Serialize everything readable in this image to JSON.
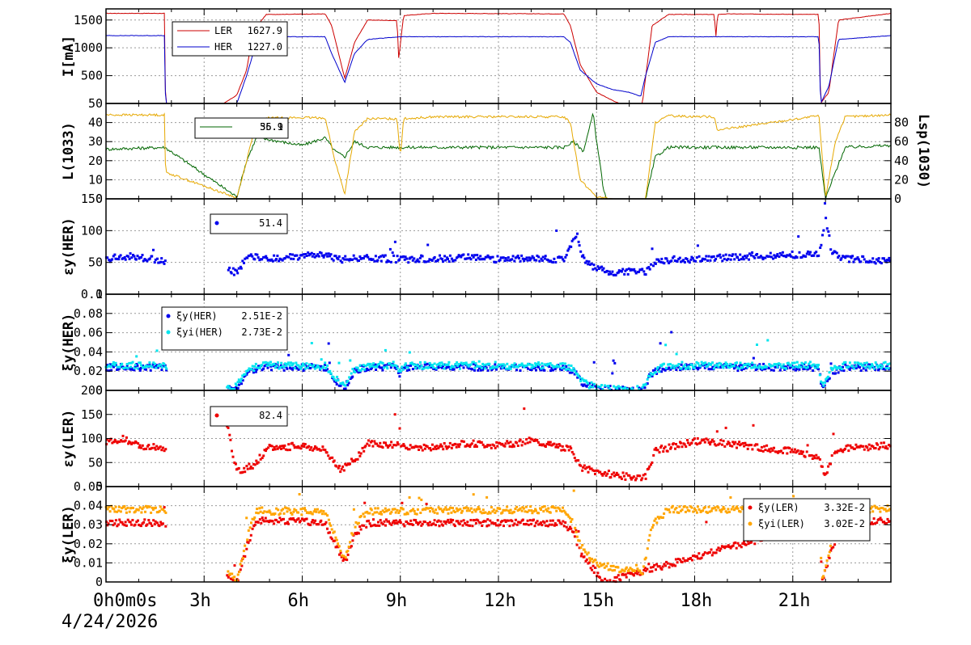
{
  "date_label": "4/24/2026",
  "time_labels": [
    "0h0m0s",
    "3h",
    "6h",
    "9h",
    "12h",
    "15h",
    "18h",
    "21h"
  ],
  "chart_data": [
    {
      "type": "line",
      "ylabel": "I[mA]",
      "ylim": [
        0,
        1700
      ],
      "yticks": [
        "500",
        "1000",
        "1500"
      ],
      "legend": [
        {
          "name": "LER",
          "value": "1627.9",
          "color": "#cc0000"
        },
        {
          "name": "HER",
          "value": "1227.0",
          "color": "#0000cc"
        }
      ],
      "series": [
        {
          "name": "LER",
          "color": "#cc0000",
          "x": [
            0,
            1.8,
            1.82,
            3.6,
            4.0,
            4.3,
            4.5,
            4.9,
            6.7,
            6.9,
            7.3,
            7.6,
            8.0,
            8.9,
            8.95,
            9.1,
            10,
            14.0,
            14.2,
            14.5,
            15.0,
            15.5,
            15.7,
            15.8,
            16.4,
            16.7,
            17.2,
            18.6,
            18.65,
            18.7,
            19,
            21.8,
            21.85,
            22.1,
            22.4,
            24
          ],
          "y": [
            1620,
            1620,
            0,
            0,
            150,
            600,
            1300,
            1600,
            1610,
            1400,
            450,
            1100,
            1500,
            1490,
            800,
            1580,
            1620,
            1610,
            1400,
            700,
            200,
            50,
            0,
            0,
            0,
            1400,
            1600,
            1600,
            1200,
            1600,
            1610,
            1600,
            0,
            200,
            1500,
            1620
          ]
        },
        {
          "name": "HER",
          "color": "#0000cc",
          "x": [
            0,
            1.8,
            1.82,
            4.0,
            4.3,
            4.6,
            5.0,
            6.7,
            6.9,
            7.3,
            7.6,
            8.0,
            9.0,
            14.0,
            14.2,
            14.5,
            15.0,
            15.5,
            16.0,
            16.35,
            16.5,
            16.8,
            17.2,
            21.8,
            21.85,
            22.1,
            22.4,
            24
          ],
          "y": [
            1220,
            1220,
            0,
            0,
            500,
            1100,
            1200,
            1200,
            900,
            380,
            900,
            1150,
            1200,
            1200,
            1100,
            600,
            350,
            250,
            200,
            130,
            500,
            1100,
            1200,
            1200,
            0,
            300,
            1150,
            1220
          ]
        }
      ]
    },
    {
      "type": "line",
      "ylabel": "L(10^33)",
      "ylabel2": "Lsp(10^30)",
      "ylim": [
        0,
        50
      ],
      "y2lim": [
        0,
        100
      ],
      "yticks": [
        "0",
        "10",
        "20",
        "30",
        "40",
        "50"
      ],
      "y2ticks": [
        "0",
        "20",
        "40",
        "60",
        "80"
      ],
      "legend": [
        {
          "name": "",
          "value": "35.9",
          "color": "#e6a800"
        },
        {
          "name": "",
          "value": "56.1",
          "color": "#006600"
        }
      ],
      "series": [
        {
          "name": "L",
          "color": "#006600",
          "x": [
            0,
            1.8,
            4.0,
            4.3,
            4.6,
            5.0,
            6.0,
            6.7,
            7.0,
            7.3,
            7.6,
            8.0,
            9,
            12,
            14.0,
            14.3,
            14.6,
            14.9,
            15.0,
            15.1,
            15.2,
            15.3,
            16.5,
            16.8,
            17.2,
            21.8,
            22.0,
            22.3,
            22.6,
            24
          ],
          "y": [
            26,
            27,
            1,
            20,
            32,
            31,
            28,
            32,
            25,
            22,
            30,
            27,
            27,
            27,
            27,
            30,
            25,
            45,
            30,
            20,
            5,
            0,
            0,
            22,
            27,
            27,
            0,
            14,
            27,
            28
          ]
        },
        {
          "name": "Lsp",
          "color": "#e6a800",
          "x": [
            0,
            1.8,
            1.82,
            4.0,
            4.3,
            4.6,
            5.0,
            6.7,
            7.0,
            7.3,
            7.6,
            8.0,
            8.9,
            9.0,
            9.1,
            10,
            14.0,
            14.2,
            14.5,
            15.0,
            15.5,
            16.5,
            16.8,
            17.2,
            18.6,
            18.7,
            21.8,
            22.0,
            22.3,
            22.6,
            24
          ],
          "y": [
            88,
            88,
            28,
            1,
            40,
            82,
            85,
            85,
            40,
            5,
            70,
            84,
            84,
            44,
            84,
            86,
            86,
            80,
            20,
            2,
            0,
            0,
            80,
            87,
            86,
            72,
            87,
            1,
            60,
            86,
            88
          ]
        }
      ]
    },
    {
      "type": "scatter",
      "ylabel": "εy(HER)",
      "ylim": [
        0,
        150
      ],
      "yticks": [
        "0",
        "50",
        "100",
        "150"
      ],
      "legend": [
        {
          "name": "",
          "value": "51.4",
          "color": "#0000ee"
        }
      ],
      "series": [
        {
          "name": "εy(HER)",
          "color": "#0000ee",
          "x": [
            0,
            0.5,
            1.0,
            1.5,
            1.8,
            4.0,
            4.2,
            4.5,
            5.0,
            6.0,
            6.7,
            7.2,
            7.8,
            8.5,
            9,
            10,
            11,
            12,
            13,
            14.0,
            14.4,
            14.6,
            15.0,
            15.5,
            16.0,
            16.5,
            16.8,
            17.5,
            18,
            19,
            20,
            21,
            21.8,
            22.0,
            22.2,
            22.5,
            23,
            24
          ],
          "y": [
            55,
            60,
            58,
            55,
            52,
            35,
            50,
            60,
            55,
            60,
            62,
            55,
            58,
            56,
            55,
            55,
            58,
            55,
            56,
            55,
            95,
            55,
            40,
            35,
            35,
            35,
            52,
            55,
            55,
            58,
            60,
            62,
            62,
            120,
            65,
            55,
            55,
            52
          ]
        }
      ]
    },
    {
      "type": "scatter",
      "ylabel": "ξy(HER)",
      "ylim": [
        0,
        0.1
      ],
      "yticks": [
        "0",
        "0.02",
        "0.04",
        "0.06",
        "0.08",
        "0.1"
      ],
      "legend": [
        {
          "name": "ξy(HER)",
          "value": "2.51E-2",
          "color": "#0000ee"
        },
        {
          "name": "ξyi(HER)",
          "value": "2.73E-2",
          "color": "#00e5ee"
        }
      ],
      "series": [
        {
          "name": "ξy(HER)",
          "color": "#0000ee",
          "x": [
            0,
            1.8,
            3.7,
            4.0,
            4.3,
            4.6,
            5.0,
            6.7,
            7.0,
            7.3,
            7.6,
            8.0,
            8.9,
            9.0,
            9.1,
            10,
            14.0,
            14.3,
            14.6,
            15.0,
            15.5,
            16.4,
            16.7,
            17.2,
            21.8,
            21.9,
            22.2,
            22.6,
            24
          ],
          "y": [
            0.024,
            0.024,
            0,
            0.003,
            0.018,
            0.023,
            0.024,
            0.024,
            0.01,
            0.003,
            0.02,
            0.024,
            0.024,
            0.016,
            0.024,
            0.024,
            0.024,
            0.02,
            0.006,
            0.002,
            0.001,
            0.001,
            0.018,
            0.024,
            0.024,
            0.002,
            0.02,
            0.024,
            0.024
          ]
        },
        {
          "name": "ξyi(HER)",
          "color": "#00e5ee",
          "x": [
            0,
            1.8,
            3.7,
            4.0,
            4.3,
            4.6,
            5.0,
            6.7,
            7.0,
            7.3,
            7.6,
            8.0,
            8.9,
            9.0,
            9.1,
            10,
            14.0,
            14.3,
            14.6,
            15.0,
            15.5,
            16.4,
            16.7,
            17.2,
            21.8,
            21.9,
            22.2,
            22.6,
            24
          ],
          "y": [
            0.026,
            0.026,
            0.002,
            0.005,
            0.02,
            0.025,
            0.026,
            0.026,
            0.012,
            0.005,
            0.022,
            0.026,
            0.026,
            0.018,
            0.026,
            0.026,
            0.026,
            0.022,
            0.008,
            0.003,
            0.001,
            0.001,
            0.02,
            0.026,
            0.026,
            0.004,
            0.022,
            0.026,
            0.026
          ]
        }
      ]
    },
    {
      "type": "scatter",
      "ylabel": "εy(LER)",
      "ylim": [
        0,
        200
      ],
      "yticks": [
        "0",
        "50",
        "100",
        "150",
        "200"
      ],
      "legend": [
        {
          "name": "",
          "value": "82.4",
          "color": "#ee0000"
        }
      ],
      "series": [
        {
          "name": "εy(LER)",
          "color": "#ee0000",
          "x": [
            0,
            0.5,
            1.0,
            1.8,
            3.7,
            4.0,
            4.5,
            5.0,
            6.0,
            6.7,
            7.2,
            7.6,
            8.0,
            9,
            10,
            11,
            12,
            13,
            14.0,
            14.2,
            14.5,
            15.0,
            15.5,
            16.0,
            16.5,
            16.8,
            17.5,
            18,
            19,
            20,
            21,
            21.8,
            22.0,
            22.3,
            22.8,
            24
          ],
          "y": [
            90,
            100,
            85,
            80,
            130,
            30,
            45,
            80,
            85,
            75,
            35,
            55,
            90,
            85,
            80,
            90,
            85,
            95,
            80,
            80,
            40,
            30,
            25,
            20,
            20,
            75,
            85,
            95,
            90,
            80,
            75,
            60,
            25,
            75,
            80,
            85
          ]
        }
      ]
    },
    {
      "type": "scatter",
      "ylabel": "ξy(LER)",
      "ylim": [
        0,
        0.05
      ],
      "yticks": [
        "0",
        "0.01",
        "0.02",
        "0.03",
        "0.04",
        "0.05"
      ],
      "legend": [
        {
          "name": "ξy(LER)",
          "value": "3.32E-2",
          "color": "#ee0000"
        },
        {
          "name": "ξyi(LER)",
          "value": "3.02E-2",
          "color": "#ffa500"
        }
      ],
      "series": [
        {
          "name": "ξy(LER)",
          "color": "#ee0000",
          "x": [
            0,
            1.8,
            4.0,
            4.3,
            4.6,
            5.0,
            6.7,
            7.0,
            7.3,
            7.6,
            8.0,
            14.0,
            14.3,
            14.6,
            15.0,
            15.2,
            15.25,
            21.8,
            21.9,
            22.2,
            22.6,
            24
          ],
          "y": [
            0.031,
            0.031,
            0,
            0.018,
            0.032,
            0.032,
            0.031,
            0.02,
            0.01,
            0.025,
            0.031,
            0.031,
            0.025,
            0.012,
            0.005,
            0.001,
            0.0,
            0.031,
            0.0,
            0.018,
            0.031,
            0.032
          ]
        },
        {
          "name": "ξyi(LER)",
          "color": "#ffa500",
          "x": [
            0,
            1.8,
            4.0,
            4.3,
            4.6,
            5.0,
            6.7,
            7.0,
            7.3,
            7.6,
            8.0,
            14.0,
            14.3,
            14.6,
            15.0,
            15.5,
            16.0,
            16.4,
            16.7,
            17.2,
            21.8,
            21.9,
            22.2,
            22.6,
            24
          ],
          "y": [
            0.038,
            0.038,
            0,
            0.022,
            0.038,
            0.037,
            0.037,
            0.024,
            0.012,
            0.03,
            0.037,
            0.038,
            0.03,
            0.016,
            0.01,
            0.007,
            0.006,
            0.005,
            0.03,
            0.038,
            0.038,
            0.001,
            0.022,
            0.037,
            0.039
          ]
        }
      ]
    }
  ]
}
